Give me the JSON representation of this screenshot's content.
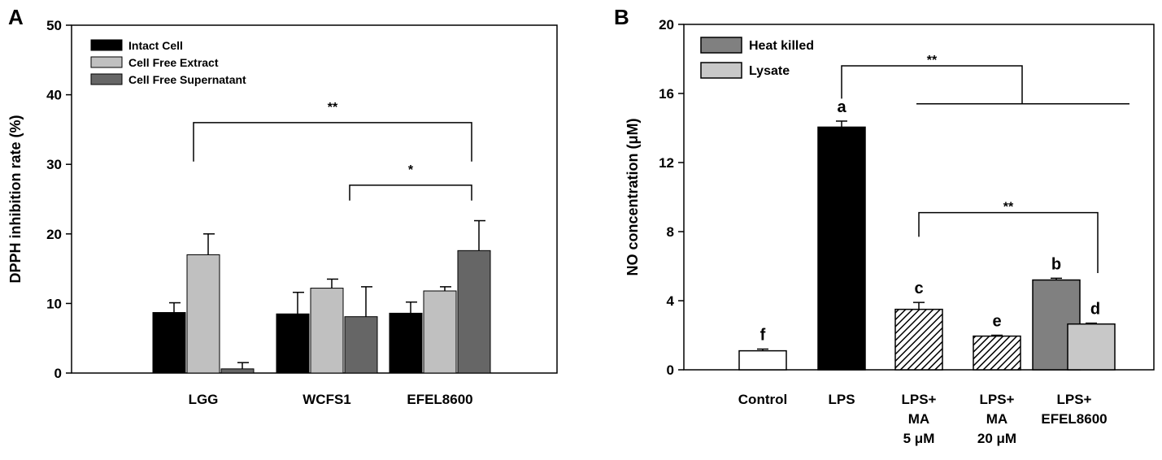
{
  "chart_data": [
    {
      "panel": "A",
      "type": "bar",
      "ylabel": "DPPH inhibition rate (%)",
      "ylim": [
        0,
        50
      ],
      "yticks": [
        0,
        10,
        20,
        30,
        40,
        50
      ],
      "categories": [
        "LGG",
        "WCFS1",
        "EFEL8600"
      ],
      "series": [
        {
          "name": "Intact Cell",
          "color": "#000000",
          "values": [
            8.7,
            8.5,
            8.6
          ],
          "errors": [
            1.4,
            3.1,
            1.6
          ]
        },
        {
          "name": "Cell Free Extract",
          "color": "#c0c0c0",
          "values": [
            17.0,
            12.2,
            11.8
          ],
          "errors": [
            3.0,
            1.3,
            0.6
          ]
        },
        {
          "name": "Cell Free Supernatant",
          "color": "#666666",
          "values": [
            0.6,
            8.1,
            17.6
          ],
          "errors": [
            0.9,
            4.3,
            4.3
          ]
        }
      ],
      "legend_position": "top-left",
      "annotations": [
        {
          "label": "**",
          "from": "LGG",
          "to": "EFEL8600",
          "y": 36.0
        },
        {
          "label": "*",
          "from": "WCFS1",
          "to": "EFEL8600",
          "y": 27.0
        }
      ]
    },
    {
      "panel": "B",
      "type": "bar",
      "ylabel": "NO concentration (μM)",
      "ylim": [
        0,
        20
      ],
      "yticks": [
        0,
        4,
        8,
        12,
        16,
        20
      ],
      "categories": [
        [
          "Control"
        ],
        [
          "LPS"
        ],
        [
          "LPS+",
          "MA",
          "5 μM"
        ],
        [
          "LPS+",
          "MA",
          "20 μM"
        ],
        [
          "LPS+",
          "EFEL8600"
        ]
      ],
      "bars": [
        {
          "category": "Control",
          "value": 1.1,
          "error": 0.1,
          "fill": "white",
          "letter": "f"
        },
        {
          "category": "LPS",
          "value": 14.05,
          "error": 0.35,
          "fill": "black",
          "letter": "a"
        },
        {
          "category": "LPS+ MA 5 μM",
          "value": 3.5,
          "error": 0.4,
          "fill": "hatch",
          "letter": "c"
        },
        {
          "category": "LPS+ MA 20 μM",
          "value": 1.95,
          "error": 0.05,
          "fill": "hatch",
          "letter": "e"
        },
        {
          "category": "LPS+ EFEL8600",
          "series": "Heat killed",
          "value": 5.2,
          "error": 0.1,
          "fill": "#808080",
          "letter": "b"
        },
        {
          "category": "LPS+ EFEL8600",
          "series": "Lysate",
          "value": 2.65,
          "error": 0.05,
          "fill": "#c8c8c8",
          "letter": "d"
        }
      ],
      "legend": [
        {
          "name": "Heat killed",
          "color": "#808080"
        },
        {
          "name": "Lysate",
          "color": "#c8c8c8"
        }
      ],
      "legend_position": "top-left",
      "annotations": [
        {
          "label": "**",
          "from": "LPS",
          "to": "LPS+ MA 5 μM … LPS+ EFEL8600",
          "y": 17.6
        },
        {
          "label": "**",
          "from": "LPS+ MA 5 μM",
          "to": "Lysate",
          "y": 9.1
        }
      ]
    }
  ]
}
